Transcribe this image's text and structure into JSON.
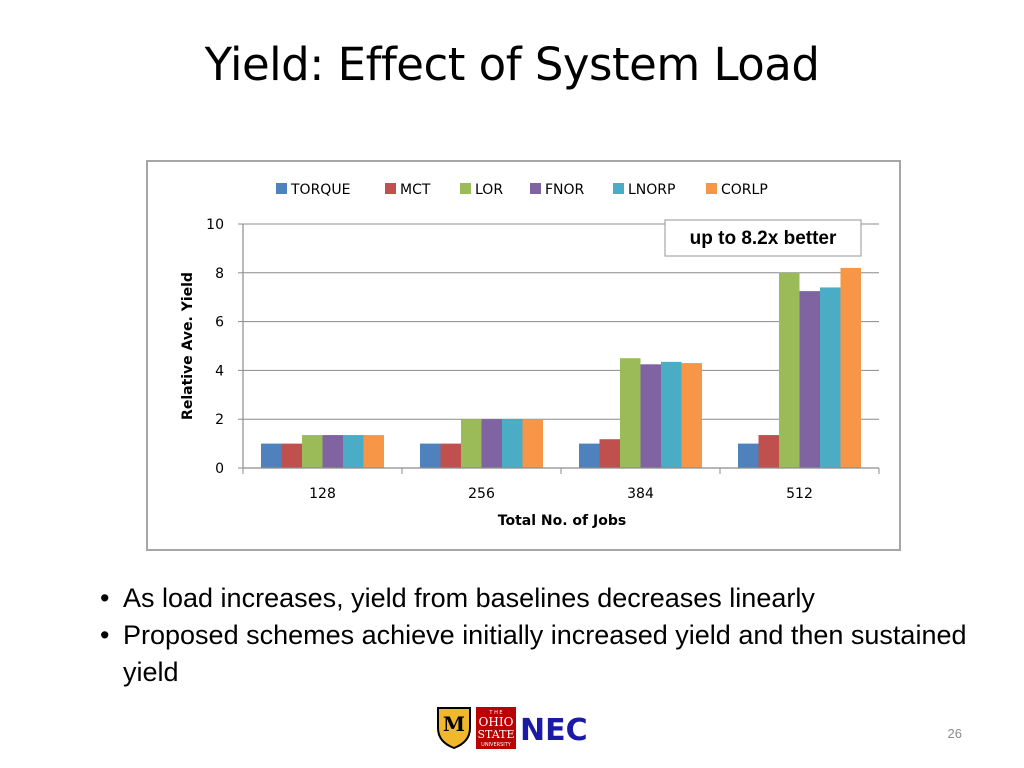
{
  "slide": {
    "title": "Yield: Effect of System Load",
    "bullets": [
      "As load increases, yield from baselines decreases linearly",
      "Proposed schemes achieve initially increased yield and then   sustained yield"
    ],
    "page_number": "26",
    "logos": {
      "mizzou": "M",
      "ohio_state": [
        "T H E",
        "OHIO",
        "STATE",
        "UNIVERSITY"
      ],
      "nec": "NEC"
    }
  },
  "chart_data": {
    "type": "bar",
    "categories": [
      "128",
      "256",
      "384",
      "512"
    ],
    "series": [
      {
        "name": "TORQUE",
        "color": "#4f81bd",
        "values": [
          1.0,
          1.0,
          1.0,
          1.0
        ]
      },
      {
        "name": "MCT",
        "color": "#c0504d",
        "values": [
          1.0,
          1.0,
          1.18,
          1.35
        ]
      },
      {
        "name": "LOR",
        "color": "#9bbb59",
        "values": [
          1.35,
          2.0,
          4.5,
          8.0
        ]
      },
      {
        "name": "FNOR",
        "color": "#8064a2",
        "values": [
          1.35,
          2.0,
          4.25,
          7.25
        ]
      },
      {
        "name": "LNORP",
        "color": "#4bacc6",
        "values": [
          1.35,
          2.0,
          4.35,
          7.4
        ]
      },
      {
        "name": "CORLP",
        "color": "#f79646",
        "values": [
          1.35,
          2.0,
          4.3,
          8.2
        ]
      }
    ],
    "xlabel": "Total No. of Jobs",
    "ylabel": "Relative Ave. Yield",
    "ylim": [
      0,
      10
    ],
    "yticks": [
      0,
      2,
      4,
      6,
      8,
      10
    ],
    "grid": true,
    "legend_position": "top",
    "annotation": "up to 8.2x better"
  }
}
